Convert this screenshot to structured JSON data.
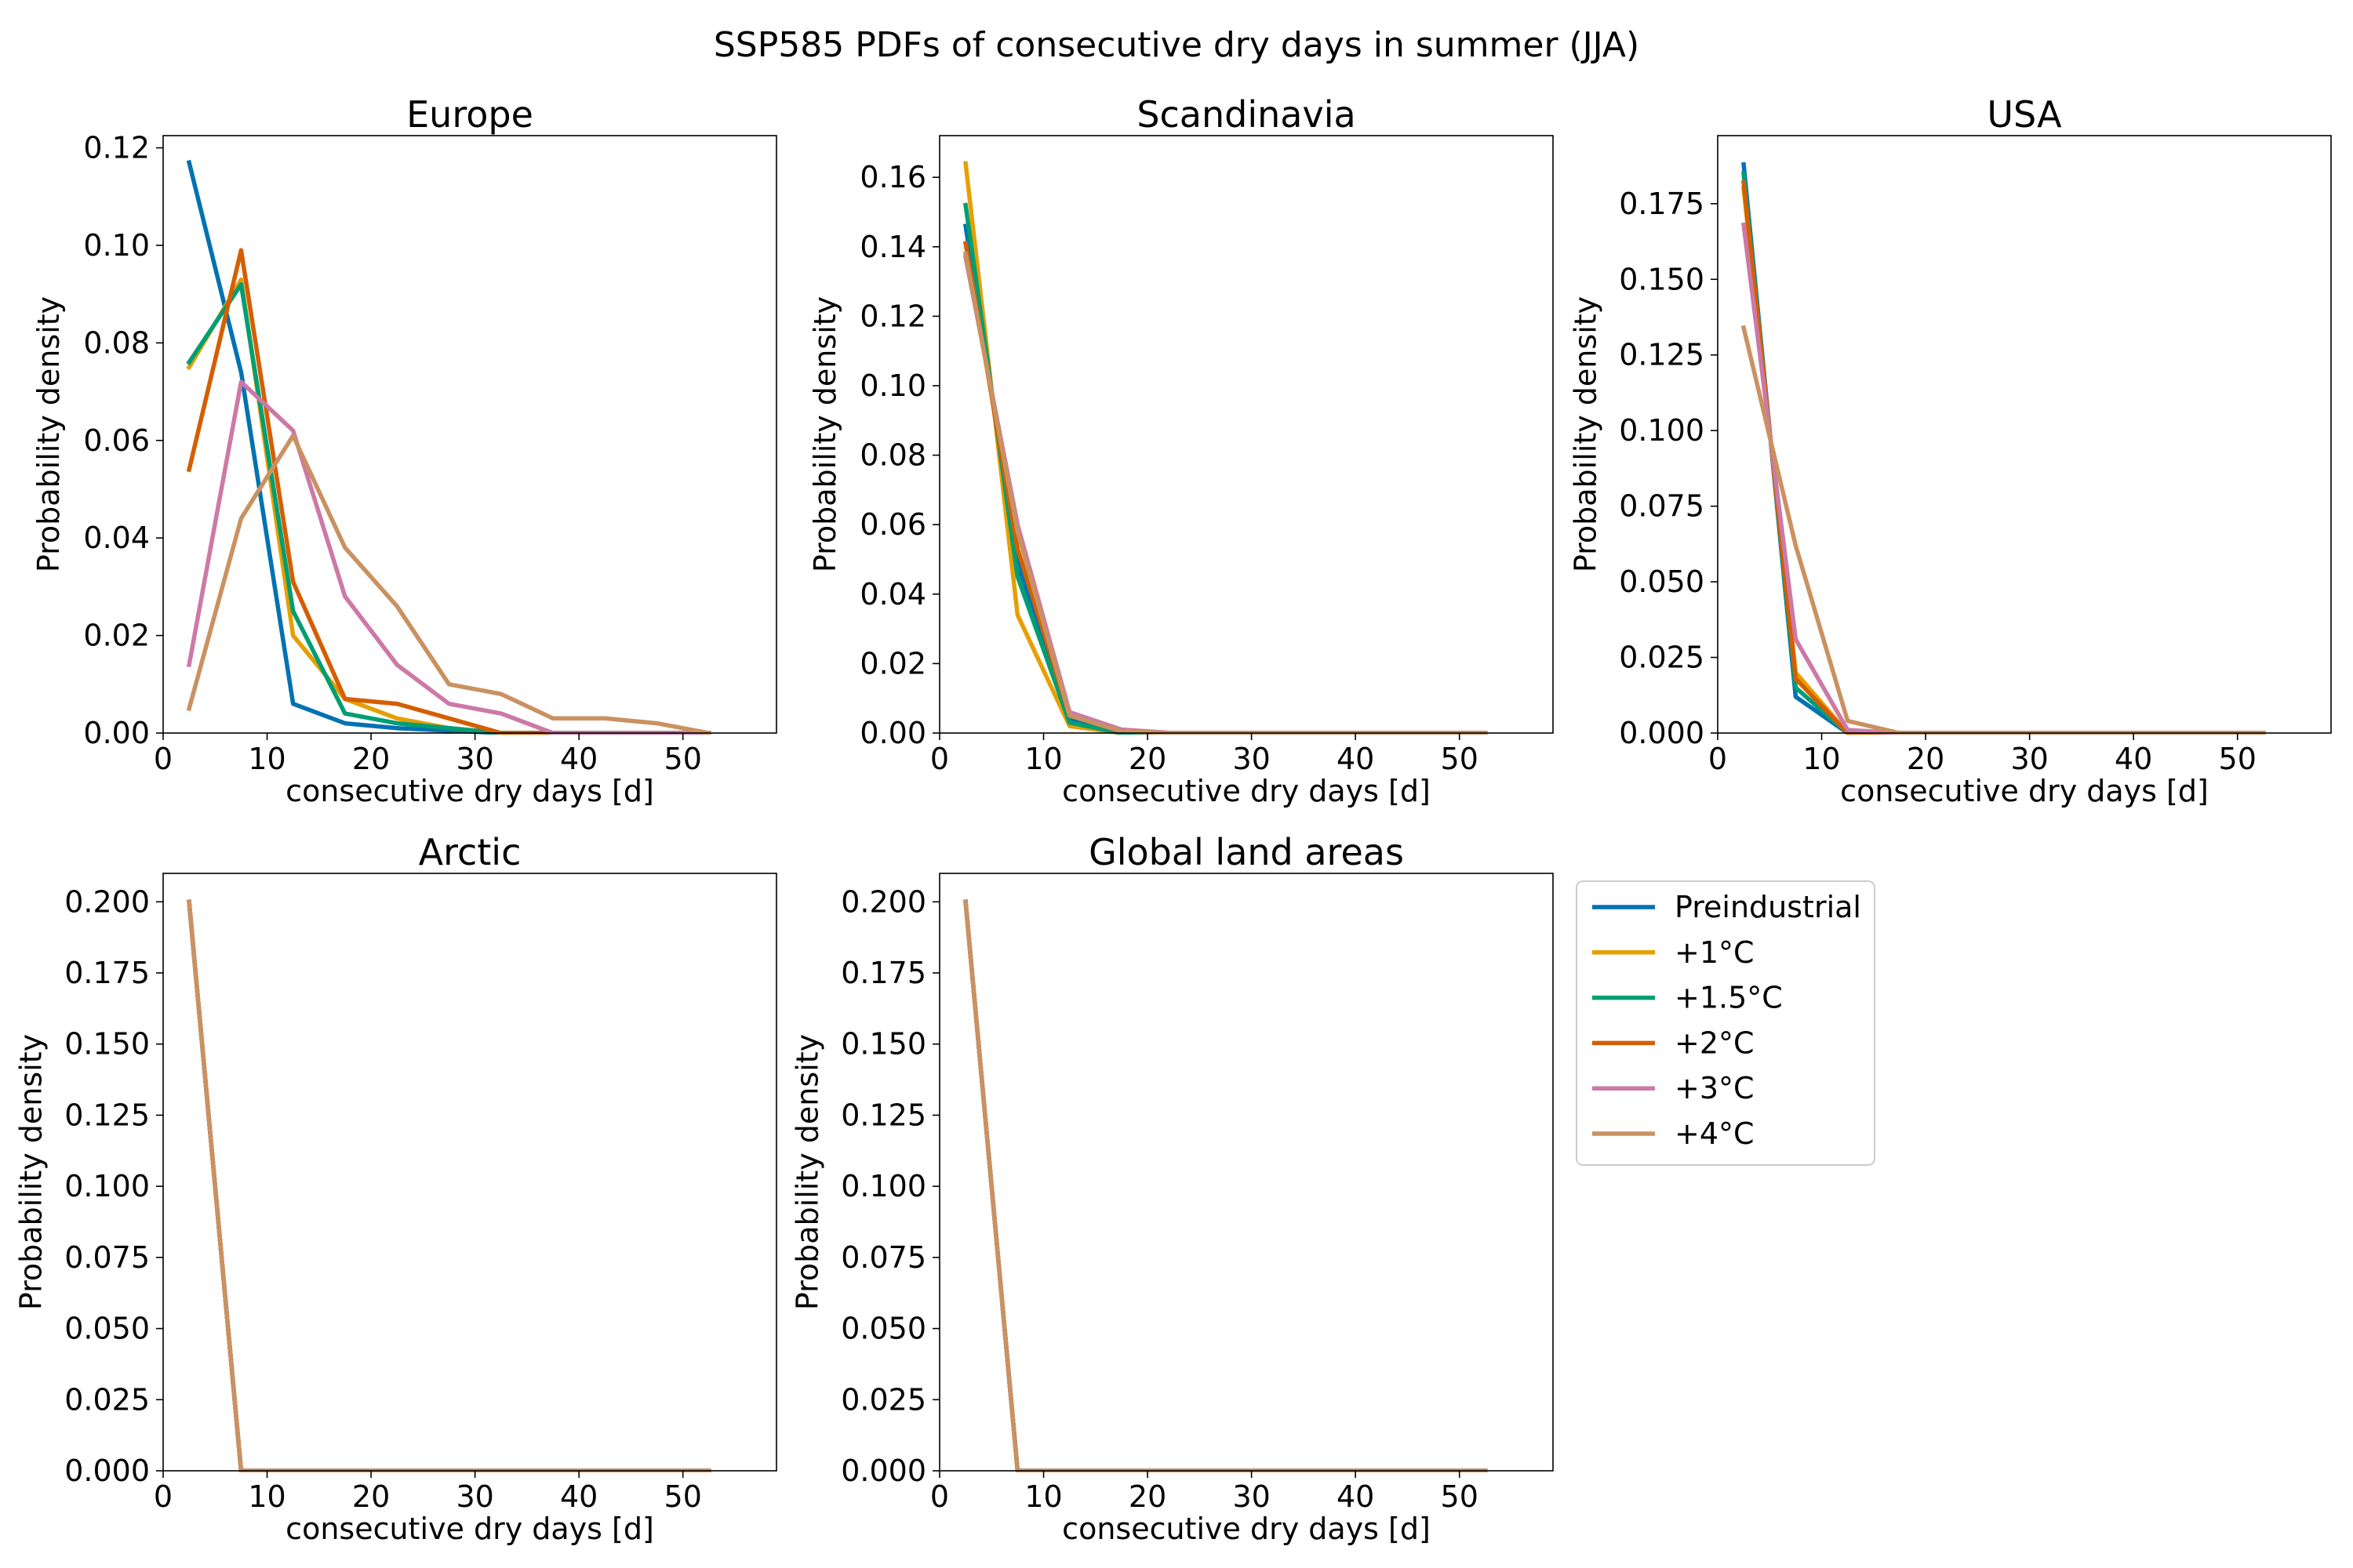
{
  "figure": {
    "suptitle": "SSP585 PDFs of consecutive dry days in summer (JJA)"
  },
  "legend": {
    "location": "right of bottom row, upper-left",
    "entries": [
      {
        "label": "Preindustrial",
        "color": "#0072B2"
      },
      {
        "label": "+1°C",
        "color": "#E69F00"
      },
      {
        "label": "+1.5°C",
        "color": "#009E73"
      },
      {
        "label": "+2°C",
        "color": "#D55E00"
      },
      {
        "label": "+3°C",
        "color": "#CC79A7"
      },
      {
        "label": "+4°C",
        "color": "#CA9161"
      }
    ]
  },
  "chart_data": [
    {
      "type": "line",
      "title": "Europe",
      "xlabel": "consecutive dry days [d]",
      "ylabel": "Probability density",
      "xlim": [
        0,
        59
      ],
      "ylim": [
        0,
        0.1225
      ],
      "xticks": [
        0,
        10,
        20,
        30,
        40,
        50
      ],
      "yticks": [
        0.0,
        0.02,
        0.04,
        0.06,
        0.08,
        0.1,
        0.12
      ],
      "ytick_labels": [
        "0.00",
        "0.02",
        "0.04",
        "0.06",
        "0.08",
        "0.10",
        "0.12"
      ],
      "grid": false,
      "x": [
        2.5,
        7.5,
        12.5,
        17.5,
        22.5,
        27.5,
        32.5,
        37.5,
        42.5,
        47.5,
        52.5
      ],
      "series": [
        {
          "name": "Preindustrial",
          "values": [
            0.117,
            0.074,
            0.006,
            0.002,
            0.001,
            0.0005,
            0.0,
            0.0,
            0.0,
            0.0,
            0.0
          ]
        },
        {
          "name": "+1°C",
          "values": [
            0.075,
            0.093,
            0.02,
            0.007,
            0.003,
            0.001,
            0.0,
            0.0,
            0.0,
            0.0,
            0.0
          ]
        },
        {
          "name": "+1.5°C",
          "values": [
            0.076,
            0.092,
            0.025,
            0.004,
            0.002,
            0.001,
            0.0,
            0.0,
            0.0,
            0.0,
            0.0
          ]
        },
        {
          "name": "+2°C",
          "values": [
            0.054,
            0.099,
            0.031,
            0.007,
            0.006,
            0.003,
            0.0,
            0.0,
            0.0,
            0.0,
            0.0
          ]
        },
        {
          "name": "+3°C",
          "values": [
            0.014,
            0.072,
            0.062,
            0.028,
            0.014,
            0.006,
            0.004,
            0.0,
            0.0,
            0.0,
            0.0
          ]
        },
        {
          "name": "+4°C",
          "values": [
            0.005,
            0.044,
            0.061,
            0.038,
            0.026,
            0.01,
            0.008,
            0.003,
            0.003,
            0.002,
            0.0
          ]
        }
      ]
    },
    {
      "type": "line",
      "title": "Scandinavia",
      "xlabel": "consecutive dry days [d]",
      "ylabel": "Probability density",
      "xlim": [
        0,
        59
      ],
      "ylim": [
        0,
        0.172
      ],
      "xticks": [
        0,
        10,
        20,
        30,
        40,
        50
      ],
      "yticks": [
        0.0,
        0.02,
        0.04,
        0.06,
        0.08,
        0.1,
        0.12,
        0.14,
        0.16
      ],
      "ytick_labels": [
        "0.00",
        "0.02",
        "0.04",
        "0.06",
        "0.08",
        "0.10",
        "0.12",
        "0.14",
        "0.16"
      ],
      "grid": false,
      "x": [
        2.5,
        7.5,
        12.5,
        17.5,
        22.5,
        27.5,
        32.5,
        37.5,
        42.5,
        47.5,
        52.5
      ],
      "series": [
        {
          "name": "Preindustrial",
          "values": [
            0.146,
            0.049,
            0.004,
            0.0,
            0.0,
            0.0,
            0.0,
            0.0,
            0.0,
            0.0,
            0.0
          ]
        },
        {
          "name": "+1°C",
          "values": [
            0.164,
            0.034,
            0.002,
            0.0,
            0.0,
            0.0,
            0.0,
            0.0,
            0.0,
            0.0,
            0.0
          ]
        },
        {
          "name": "+1.5°C",
          "values": [
            0.152,
            0.045,
            0.003,
            0.0,
            0.0,
            0.0,
            0.0,
            0.0,
            0.0,
            0.0,
            0.0
          ]
        },
        {
          "name": "+2°C",
          "values": [
            0.141,
            0.053,
            0.005,
            0.0005,
            0.0,
            0.0,
            0.0,
            0.0,
            0.0,
            0.0,
            0.0
          ]
        },
        {
          "name": "+3°C",
          "values": [
            0.137,
            0.06,
            0.006,
            0.001,
            0.0,
            0.0,
            0.0,
            0.0,
            0.0,
            0.0,
            0.0
          ]
        },
        {
          "name": "+4°C",
          "values": [
            0.138,
            0.058,
            0.005,
            0.0005,
            0.0,
            0.0,
            0.0,
            0.0,
            0.0,
            0.0,
            0.0
          ]
        }
      ]
    },
    {
      "type": "line",
      "title": "USA",
      "xlabel": "consecutive dry days [d]",
      "ylabel": "Probability density",
      "xlim": [
        0,
        59
      ],
      "ylim": [
        0,
        0.1975
      ],
      "xticks": [
        0,
        10,
        20,
        30,
        40,
        50
      ],
      "yticks": [
        0.0,
        0.025,
        0.05,
        0.075,
        0.1,
        0.125,
        0.15,
        0.175
      ],
      "ytick_labels": [
        "0.000",
        "0.025",
        "0.050",
        "0.075",
        "0.100",
        "0.125",
        "0.150",
        "0.175"
      ],
      "grid": false,
      "x": [
        2.5,
        7.5,
        12.5,
        17.5,
        22.5,
        27.5,
        32.5,
        37.5,
        42.5,
        47.5,
        52.5
      ],
      "series": [
        {
          "name": "Preindustrial",
          "values": [
            0.188,
            0.012,
            0.0,
            0.0,
            0.0,
            0.0,
            0.0,
            0.0,
            0.0,
            0.0,
            0.0
          ]
        },
        {
          "name": "+1°C",
          "values": [
            0.18,
            0.02,
            0.0,
            0.0,
            0.0,
            0.0,
            0.0,
            0.0,
            0.0,
            0.0,
            0.0
          ]
        },
        {
          "name": "+1.5°C",
          "values": [
            0.185,
            0.015,
            0.0,
            0.0,
            0.0,
            0.0,
            0.0,
            0.0,
            0.0,
            0.0,
            0.0
          ]
        },
        {
          "name": "+2°C",
          "values": [
            0.182,
            0.018,
            0.0,
            0.0,
            0.0,
            0.0,
            0.0,
            0.0,
            0.0,
            0.0,
            0.0
          ]
        },
        {
          "name": "+3°C",
          "values": [
            0.168,
            0.031,
            0.001,
            0.0,
            0.0,
            0.0,
            0.0,
            0.0,
            0.0,
            0.0,
            0.0
          ]
        },
        {
          "name": "+4°C",
          "values": [
            0.134,
            0.062,
            0.004,
            0.0,
            0.0,
            0.0,
            0.0,
            0.0,
            0.0,
            0.0,
            0.0
          ]
        }
      ]
    },
    {
      "type": "line",
      "title": "Arctic",
      "xlabel": "consecutive dry days [d]",
      "ylabel": "Probability density",
      "xlim": [
        0,
        59
      ],
      "ylim": [
        0,
        0.21
      ],
      "xticks": [
        0,
        10,
        20,
        30,
        40,
        50
      ],
      "yticks": [
        0.0,
        0.025,
        0.05,
        0.075,
        0.1,
        0.125,
        0.15,
        0.175,
        0.2
      ],
      "ytick_labels": [
        "0.000",
        "0.025",
        "0.050",
        "0.075",
        "0.100",
        "0.125",
        "0.150",
        "0.175",
        "0.200"
      ],
      "grid": false,
      "x": [
        2.5,
        7.5,
        12.5,
        17.5,
        22.5,
        27.5,
        32.5,
        37.5,
        42.5,
        47.5,
        52.5
      ],
      "series": [
        {
          "name": "Preindustrial",
          "values": [
            0.2,
            0.0,
            0.0,
            0.0,
            0.0,
            0.0,
            0.0,
            0.0,
            0.0,
            0.0,
            0.0
          ]
        },
        {
          "name": "+1°C",
          "values": [
            0.2,
            0.0,
            0.0,
            0.0,
            0.0,
            0.0,
            0.0,
            0.0,
            0.0,
            0.0,
            0.0
          ]
        },
        {
          "name": "+1.5°C",
          "values": [
            0.2,
            0.0,
            0.0,
            0.0,
            0.0,
            0.0,
            0.0,
            0.0,
            0.0,
            0.0,
            0.0
          ]
        },
        {
          "name": "+2°C",
          "values": [
            0.2,
            0.0,
            0.0,
            0.0,
            0.0,
            0.0,
            0.0,
            0.0,
            0.0,
            0.0,
            0.0
          ]
        },
        {
          "name": "+3°C",
          "values": [
            0.2,
            0.0,
            0.0,
            0.0,
            0.0,
            0.0,
            0.0,
            0.0,
            0.0,
            0.0,
            0.0
          ]
        },
        {
          "name": "+4°C",
          "values": [
            0.2,
            0.0,
            0.0,
            0.0,
            0.0,
            0.0,
            0.0,
            0.0,
            0.0,
            0.0,
            0.0
          ]
        }
      ]
    },
    {
      "type": "line",
      "title": "Global land areas",
      "xlabel": "consecutive dry days [d]",
      "ylabel": "Probability density",
      "xlim": [
        0,
        59
      ],
      "ylim": [
        0,
        0.21
      ],
      "xticks": [
        0,
        10,
        20,
        30,
        40,
        50
      ],
      "yticks": [
        0.0,
        0.025,
        0.05,
        0.075,
        0.1,
        0.125,
        0.15,
        0.175,
        0.2
      ],
      "ytick_labels": [
        "0.000",
        "0.025",
        "0.050",
        "0.075",
        "0.100",
        "0.125",
        "0.150",
        "0.175",
        "0.200"
      ],
      "grid": false,
      "x": [
        2.5,
        7.5,
        12.5,
        17.5,
        22.5,
        27.5,
        32.5,
        37.5,
        42.5,
        47.5,
        52.5
      ],
      "series": [
        {
          "name": "Preindustrial",
          "values": [
            0.2,
            0.0,
            0.0,
            0.0,
            0.0,
            0.0,
            0.0,
            0.0,
            0.0,
            0.0,
            0.0
          ]
        },
        {
          "name": "+1°C",
          "values": [
            0.2,
            0.0,
            0.0,
            0.0,
            0.0,
            0.0,
            0.0,
            0.0,
            0.0,
            0.0,
            0.0
          ]
        },
        {
          "name": "+1.5°C",
          "values": [
            0.2,
            0.0,
            0.0,
            0.0,
            0.0,
            0.0,
            0.0,
            0.0,
            0.0,
            0.0,
            0.0
          ]
        },
        {
          "name": "+2°C",
          "values": [
            0.2,
            0.0,
            0.0,
            0.0,
            0.0,
            0.0,
            0.0,
            0.0,
            0.0,
            0.0,
            0.0
          ]
        },
        {
          "name": "+3°C",
          "values": [
            0.2,
            0.0,
            0.0,
            0.0,
            0.0,
            0.0,
            0.0,
            0.0,
            0.0,
            0.0,
            0.0
          ]
        },
        {
          "name": "+4°C",
          "values": [
            0.2,
            0.0,
            0.0,
            0.0,
            0.0,
            0.0,
            0.0,
            0.0,
            0.0,
            0.0,
            0.0
          ]
        }
      ]
    }
  ]
}
